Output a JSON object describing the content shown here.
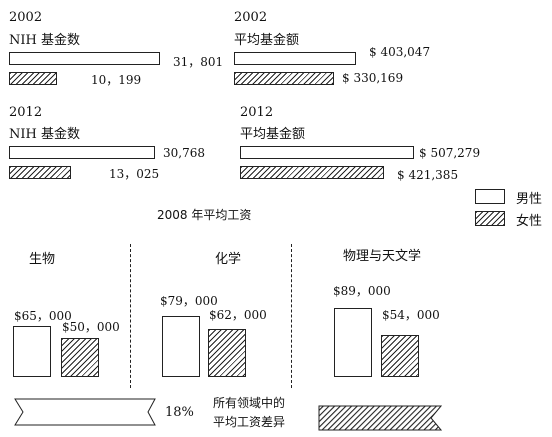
{
  "chart_data": [
    {
      "type": "bar",
      "orientation": "horizontal",
      "year": "2002",
      "title": "NIH 基金数",
      "series": [
        {
          "name": "男性",
          "value": 31801,
          "label": "31，801"
        },
        {
          "name": "女性",
          "value": 10199,
          "label": "10，199"
        }
      ]
    },
    {
      "type": "bar",
      "orientation": "horizontal",
      "year": "2002",
      "title": "平均基金额",
      "series": [
        {
          "name": "男性",
          "value": 403047,
          "label": "$ 403,047"
        },
        {
          "name": "女性",
          "value": 330169,
          "label": "$ 330,169"
        }
      ]
    },
    {
      "type": "bar",
      "orientation": "horizontal",
      "year": "2012",
      "title": "NIH 基金数",
      "series": [
        {
          "name": "男性",
          "value": 30768,
          "label": "30,768"
        },
        {
          "name": "女性",
          "value": 13025,
          "label": "13，025"
        }
      ]
    },
    {
      "type": "bar",
      "orientation": "horizontal",
      "year": "2012",
      "title": "平均基金额",
      "series": [
        {
          "name": "男性",
          "value": 507279,
          "label": "$ 507,279"
        },
        {
          "name": "女性",
          "value": 421385,
          "label": "$ 421,385"
        }
      ]
    },
    {
      "type": "bar",
      "orientation": "vertical",
      "title": "2008 年平均工资",
      "categories": [
        "生物",
        "化学",
        "物理与天文学"
      ],
      "series": [
        {
          "name": "男性",
          "values": [
            65000,
            79000,
            89000
          ],
          "labels": [
            "$65，000",
            "$79，000",
            "$89，000"
          ]
        },
        {
          "name": "女性",
          "values": [
            50000,
            62000,
            54000
          ],
          "labels": [
            "$50，000",
            "$62，000",
            "$54，000"
          ]
        }
      ]
    }
  ],
  "legend": {
    "male": "男性",
    "female": "女性"
  },
  "footer": {
    "percent": "18%",
    "caption_line1": "所有领域中的",
    "caption_line2": "平均工资差异"
  },
  "colors": {
    "stroke": "#222222",
    "fill": "#ffffff"
  }
}
